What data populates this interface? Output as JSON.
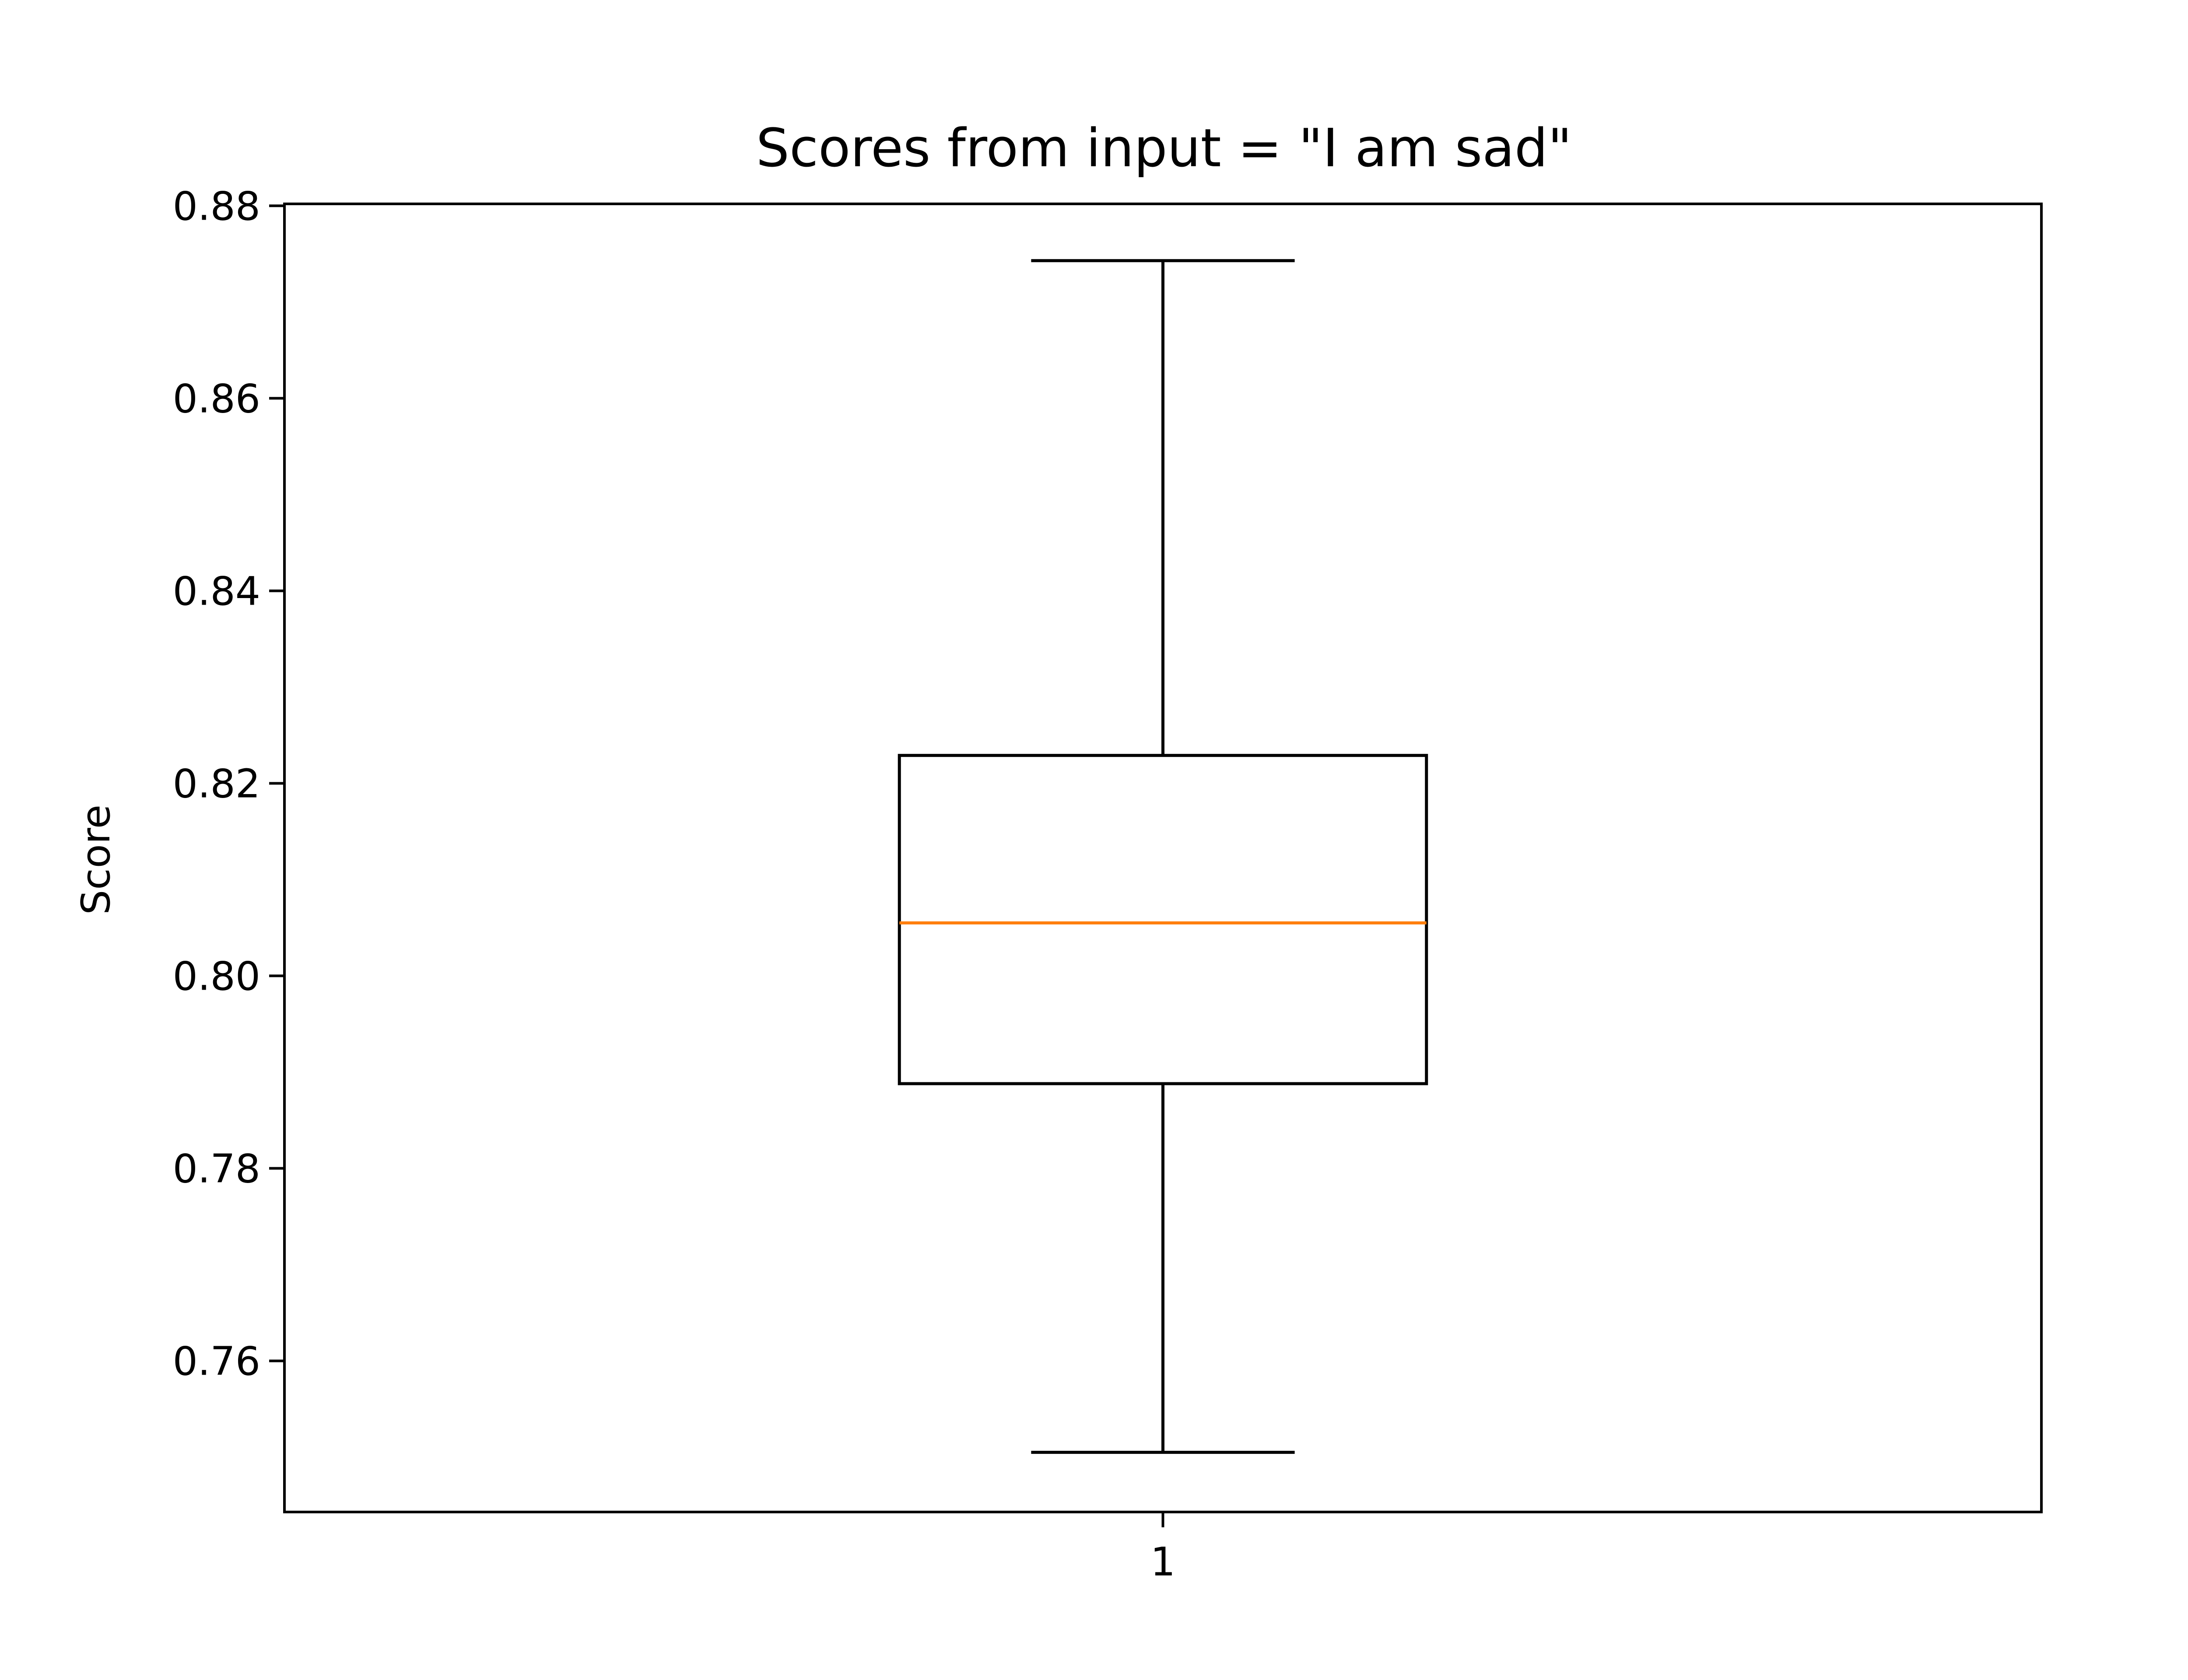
{
  "chart_data": {
    "type": "box",
    "title": "Scores from input = \"I am sad\"",
    "xlabel": "",
    "ylabel": "Score",
    "categories": [
      "1"
    ],
    "yticks": [
      "0.76",
      "0.78",
      "0.80",
      "0.82",
      "0.84",
      "0.86",
      "0.88"
    ],
    "ylim": [
      0.7443,
      0.8802
    ],
    "boxes": [
      {
        "label": "1",
        "whisker_low": 0.7505,
        "q1": 0.7888,
        "median": 0.8055,
        "q3": 0.8229,
        "whisker_high": 0.8743
      }
    ],
    "grid": false,
    "legend": "none",
    "colors": {
      "box": "#000000",
      "median": "#ff7f0e"
    }
  }
}
